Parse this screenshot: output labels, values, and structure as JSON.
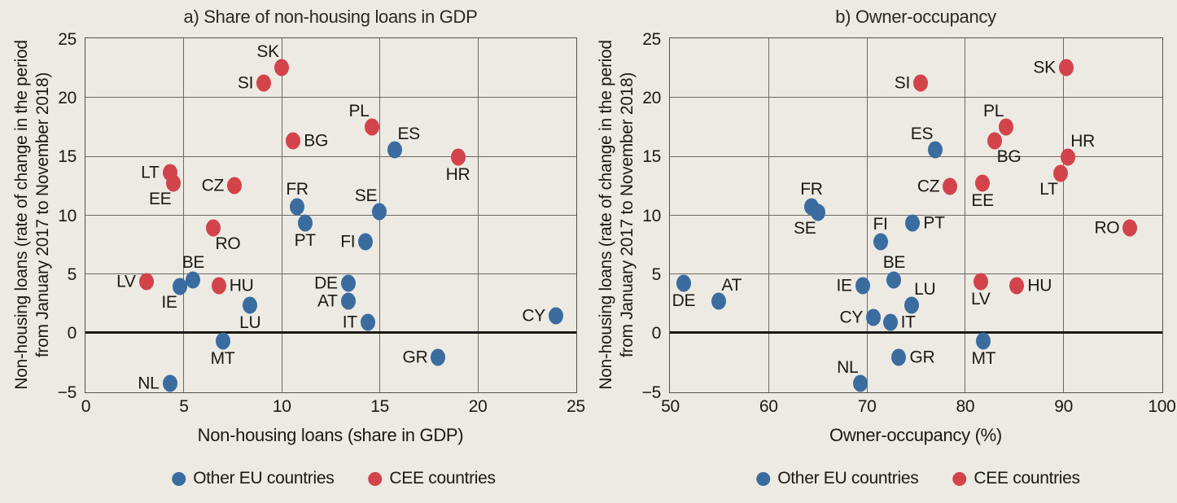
{
  "figure": {
    "background": "#EDEAE3",
    "text_color": "#1A1916"
  },
  "colors": {
    "other": "#3A6CA0",
    "cee": "#D2434A",
    "grid": "#6E6A63",
    "border": "#55524C",
    "zero_line": "#1A1916"
  },
  "legend": [
    {
      "label": "Other EU countries",
      "group": "other"
    },
    {
      "label": "CEE countries",
      "group": "cee"
    }
  ],
  "chart_data": [
    {
      "type": "scatter",
      "title": "a) Share of non-housing loans in GDP",
      "xlabel": "Non-housing loans (share in GDP)",
      "ylabel": "Non-housing loans (rate of change in the period from January 2017 to November 2018)",
      "ylabel_lines": [
        "Non-housing loans (rate of change in the period",
        "from January 2017 to November  2018)"
      ],
      "xlim": [
        0,
        25
      ],
      "ylim": [
        -5,
        25
      ],
      "xticks": [
        0,
        5,
        10,
        15,
        20,
        25
      ],
      "yticks": [
        -5,
        0,
        5,
        10,
        15,
        20,
        25
      ],
      "grid": true,
      "zero_line_at": 0,
      "legend_position": "bottom",
      "points": [
        {
          "label": "SK",
          "x": 10.0,
          "y": 22.5,
          "group": "cee",
          "label_pos": "above-left"
        },
        {
          "label": "SI",
          "x": 9.1,
          "y": 21.2,
          "group": "cee",
          "label_pos": "left"
        },
        {
          "label": "PL",
          "x": 14.6,
          "y": 17.5,
          "group": "cee",
          "label_pos": "above-left"
        },
        {
          "label": "BG",
          "x": 10.6,
          "y": 16.3,
          "group": "cee",
          "label_pos": "right"
        },
        {
          "label": "ES",
          "x": 15.8,
          "y": 15.5,
          "group": "other",
          "label_pos": "above-right"
        },
        {
          "label": "HR",
          "x": 19.0,
          "y": 14.9,
          "group": "cee",
          "label_pos": "below"
        },
        {
          "label": "LT",
          "x": 4.3,
          "y": 13.6,
          "group": "cee",
          "label_pos": "left"
        },
        {
          "label": "EE",
          "x": 4.5,
          "y": 12.7,
          "group": "cee",
          "label_pos": "below-left"
        },
        {
          "label": "CZ",
          "x": 7.6,
          "y": 12.5,
          "group": "cee",
          "label_pos": "left"
        },
        {
          "label": "FR",
          "x": 10.8,
          "y": 10.7,
          "group": "other",
          "label_pos": "above"
        },
        {
          "label": "SE",
          "x": 15.0,
          "y": 10.3,
          "group": "other",
          "label_pos": "above-left"
        },
        {
          "label": "PT",
          "x": 11.2,
          "y": 9.3,
          "group": "other",
          "label_pos": "below"
        },
        {
          "label": "RO",
          "x": 6.5,
          "y": 8.9,
          "group": "cee",
          "label_pos": "below-right"
        },
        {
          "label": "FI",
          "x": 14.3,
          "y": 7.7,
          "group": "other",
          "label_pos": "left"
        },
        {
          "label": "BE",
          "x": 5.5,
          "y": 4.5,
          "group": "other",
          "label_pos": "above"
        },
        {
          "label": "LV",
          "x": 3.1,
          "y": 4.3,
          "group": "cee",
          "label_pos": "left"
        },
        {
          "label": "DE",
          "x": 13.4,
          "y": 4.2,
          "group": "other",
          "label_pos": "left"
        },
        {
          "label": "HU",
          "x": 6.8,
          "y": 4.0,
          "group": "cee",
          "label_pos": "right"
        },
        {
          "label": "IE",
          "x": 4.8,
          "y": 3.9,
          "group": "other",
          "label_pos": "below-left"
        },
        {
          "label": "AT",
          "x": 13.4,
          "y": 2.7,
          "group": "other",
          "label_pos": "left"
        },
        {
          "label": "LU",
          "x": 8.4,
          "y": 2.3,
          "group": "other",
          "label_pos": "below"
        },
        {
          "label": "CY",
          "x": 24.0,
          "y": 1.4,
          "group": "other",
          "label_pos": "left"
        },
        {
          "label": "IT",
          "x": 14.4,
          "y": 0.9,
          "group": "other",
          "label_pos": "left"
        },
        {
          "label": "MT",
          "x": 7.0,
          "y": -0.7,
          "group": "other",
          "label_pos": "below"
        },
        {
          "label": "GR",
          "x": 18.0,
          "y": -2.1,
          "group": "other",
          "label_pos": "left"
        },
        {
          "label": "NL",
          "x": 4.3,
          "y": -4.3,
          "group": "other",
          "label_pos": "left"
        }
      ]
    },
    {
      "type": "scatter",
      "title": "b) Owner-occupancy",
      "xlabel": "Owner-occupancy (%)",
      "ylabel": "Non-housing loans (rate of change in the period from January 2017 to November 2018)",
      "ylabel_lines": [
        "Non-housing loans (rate of change in the period",
        "from January 2017 to November  2018)"
      ],
      "xlim": [
        50,
        100
      ],
      "ylim": [
        -5,
        25
      ],
      "xticks": [
        50,
        60,
        70,
        80,
        90,
        100
      ],
      "yticks": [
        -5,
        0,
        5,
        10,
        15,
        20,
        25
      ],
      "grid": true,
      "zero_line_at": 0,
      "legend_position": "bottom",
      "points": [
        {
          "label": "SK",
          "x": 90.3,
          "y": 22.5,
          "group": "cee",
          "label_pos": "left"
        },
        {
          "label": "SI",
          "x": 75.5,
          "y": 21.2,
          "group": "cee",
          "label_pos": "left"
        },
        {
          "label": "PL",
          "x": 84.2,
          "y": 17.5,
          "group": "cee",
          "label_pos": "above-left"
        },
        {
          "label": "BG",
          "x": 83.0,
          "y": 16.3,
          "group": "cee",
          "label_pos": "below-right"
        },
        {
          "label": "ES",
          "x": 77.0,
          "y": 15.5,
          "group": "other",
          "label_pos": "above-left"
        },
        {
          "label": "HR",
          "x": 90.5,
          "y": 14.9,
          "group": "cee",
          "label_pos": "above-right"
        },
        {
          "label": "LT",
          "x": 89.7,
          "y": 13.5,
          "group": "cee",
          "label_pos": "below-left"
        },
        {
          "label": "EE",
          "x": 81.8,
          "y": 12.7,
          "group": "cee",
          "label_pos": "below"
        },
        {
          "label": "CZ",
          "x": 78.5,
          "y": 12.4,
          "group": "cee",
          "label_pos": "left"
        },
        {
          "label": "FR",
          "x": 64.4,
          "y": 10.7,
          "group": "other",
          "label_pos": "above"
        },
        {
          "label": "SE",
          "x": 65.1,
          "y": 10.2,
          "group": "other",
          "label_pos": "below-left"
        },
        {
          "label": "PT",
          "x": 74.7,
          "y": 9.3,
          "group": "other",
          "label_pos": "right"
        },
        {
          "label": "RO",
          "x": 96.8,
          "y": 8.9,
          "group": "cee",
          "label_pos": "left"
        },
        {
          "label": "FI",
          "x": 71.4,
          "y": 7.7,
          "group": "other",
          "label_pos": "above"
        },
        {
          "label": "BE",
          "x": 72.8,
          "y": 4.5,
          "group": "other",
          "label_pos": "above"
        },
        {
          "label": "LV",
          "x": 81.6,
          "y": 4.3,
          "group": "cee",
          "label_pos": "below"
        },
        {
          "label": "DE",
          "x": 51.4,
          "y": 4.2,
          "group": "other",
          "label_pos": "below"
        },
        {
          "label": "HU",
          "x": 85.3,
          "y": 4.0,
          "group": "cee",
          "label_pos": "right"
        },
        {
          "label": "IE",
          "x": 69.6,
          "y": 4.0,
          "group": "other",
          "label_pos": "left"
        },
        {
          "label": "AT",
          "x": 55.0,
          "y": 2.7,
          "group": "other",
          "label_pos": "above-right"
        },
        {
          "label": "LU",
          "x": 74.6,
          "y": 2.3,
          "group": "other",
          "label_pos": "above-right"
        },
        {
          "label": "CY",
          "x": 70.7,
          "y": 1.3,
          "group": "other",
          "label_pos": "left"
        },
        {
          "label": "IT",
          "x": 72.4,
          "y": 0.9,
          "group": "other",
          "label_pos": "right"
        },
        {
          "label": "MT",
          "x": 81.9,
          "y": -0.7,
          "group": "other",
          "label_pos": "below"
        },
        {
          "label": "GR",
          "x": 73.3,
          "y": -2.1,
          "group": "other",
          "label_pos": "right"
        },
        {
          "label": "NL",
          "x": 69.4,
          "y": -4.3,
          "group": "other",
          "label_pos": "above-left"
        }
      ]
    }
  ]
}
